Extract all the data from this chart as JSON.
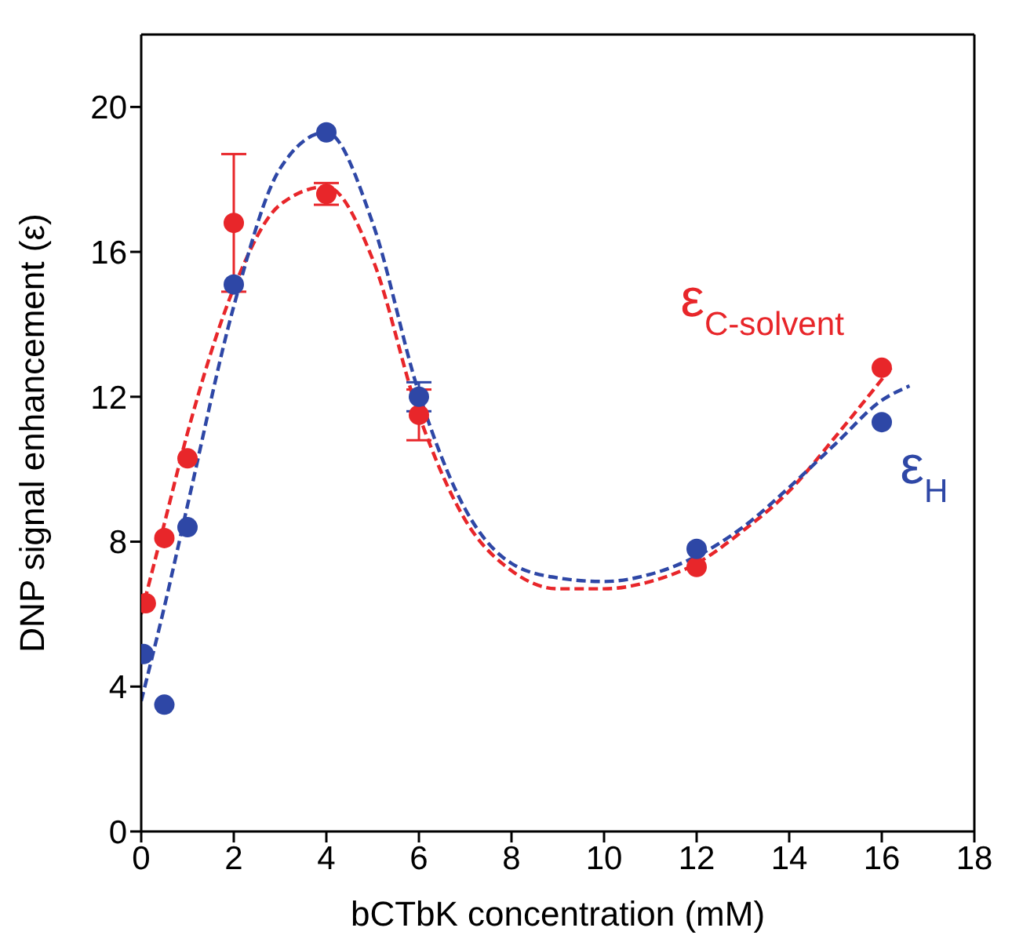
{
  "chart_data": {
    "type": "scatter",
    "xlabel": "bCTbK concentration (mM)",
    "ylabel": "DNP signal enhancement (ε)",
    "xlim": [
      0,
      18
    ],
    "xticks": [
      0,
      2,
      4,
      6,
      8,
      10,
      12,
      14,
      16,
      18
    ],
    "ylim": [
      0,
      22
    ],
    "yticks": [
      0,
      4,
      8,
      12,
      16,
      20
    ],
    "grid": false,
    "legend": false,
    "marker": "circle",
    "series": [
      {
        "name": "ε$_{C-solvent}$",
        "color": "#e8262a",
        "x": [
          0.1,
          0.5,
          1,
          2,
          4,
          6,
          12,
          16
        ],
        "values": [
          6.3,
          8.1,
          10.3,
          16.8,
          17.6,
          11.5,
          7.3,
          12.8
        ],
        "errors": [
          null,
          null,
          null,
          1.9,
          0.3,
          0.7,
          null,
          null
        ]
      },
      {
        "name": "ε$_{H}$",
        "color": "#2e47a6",
        "x": [
          0.05,
          0.5,
          1,
          2,
          4,
          6,
          12,
          16
        ],
        "values": [
          4.9,
          3.5,
          8.4,
          15.1,
          19.3,
          12.0,
          7.8,
          11.3
        ],
        "errors": [
          null,
          null,
          null,
          null,
          null,
          0.4,
          null,
          null
        ]
      },
      {
        "type": "line",
        "color": "#e8262a",
        "line_style": "dashed",
        "marker": "none",
        "x": [
          0,
          0.5,
          1,
          2,
          3,
          4,
          5,
          6,
          7,
          8,
          9,
          10,
          11,
          12,
          13,
          14,
          15,
          16.2
        ],
        "values": [
          6.0,
          8.5,
          11.0,
          15.0,
          17.3,
          17.8,
          15.8,
          11.5,
          8.6,
          7.2,
          6.7,
          6.7,
          6.9,
          7.4,
          8.3,
          9.4,
          10.9,
          12.8
        ]
      },
      {
        "type": "line",
        "color": "#2e47a6",
        "line_style": "dashed",
        "marker": "none",
        "x": [
          0,
          0.5,
          1,
          2,
          3,
          4,
          5,
          6,
          7,
          8,
          9,
          10,
          11,
          12,
          13,
          14,
          15,
          16,
          16.6
        ],
        "values": [
          3.6,
          6.2,
          9.0,
          14.5,
          18.3,
          19.3,
          16.8,
          12.1,
          8.9,
          7.4,
          7.0,
          6.9,
          7.1,
          7.6,
          8.4,
          9.5,
          10.7,
          11.9,
          12.3
        ]
      }
    ]
  }
}
